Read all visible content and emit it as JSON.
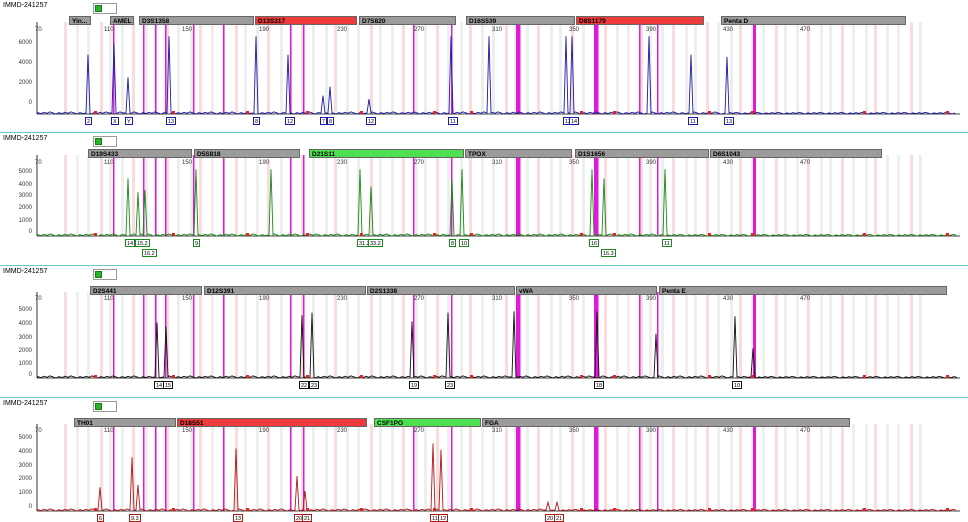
{
  "panels": [
    {
      "id": "blue",
      "title": "IMMD-241257",
      "color": "#1a1aa8",
      "ticks": [
        "70",
        "110",
        "150",
        "190",
        "230",
        "270",
        "310",
        "350",
        "390",
        "430",
        "470"
      ],
      "ylabels": [
        "6000",
        "4000",
        "2000",
        "0"
      ],
      "ymax": 7000,
      "loci": [
        {
          "name": "Yin...",
          "status": "gray"
        },
        {
          "name": "AMEL",
          "status": "gray"
        },
        {
          "name": "D3S1358",
          "status": "gray"
        },
        {
          "name": "D13S317",
          "status": "red"
        },
        {
          "name": "D7S820",
          "status": "gray"
        },
        {
          "name": "D16S539",
          "status": "gray"
        },
        {
          "name": "D8S1179",
          "status": "red"
        },
        {
          "name": "Penta D",
          "status": "gray"
        }
      ],
      "peaks": [
        [
          88,
          5200
        ],
        [
          114,
          6200
        ],
        [
          128,
          3200
        ],
        [
          169,
          6800
        ],
        [
          256,
          6800
        ],
        [
          288,
          5200
        ],
        [
          323,
          1600
        ],
        [
          330,
          2400
        ],
        [
          369,
          1300
        ],
        [
          451,
          6800
        ],
        [
          489,
          6800
        ],
        [
          566,
          6800
        ],
        [
          572,
          6800
        ],
        [
          649,
          6800
        ],
        [
          691,
          5200
        ],
        [
          727,
          5000
        ]
      ],
      "alleles": [
        [
          "2",
          88
        ],
        [
          "X",
          114
        ],
        [
          "Y",
          128
        ],
        [
          "13",
          169
        ],
        [
          "8",
          256
        ],
        [
          "12",
          288
        ],
        [
          "7",
          323
        ],
        [
          "8",
          330
        ],
        [
          "12",
          369
        ],
        [
          "11",
          451
        ],
        [
          "13",
          566
        ],
        [
          "14",
          572
        ],
        [
          "11",
          691
        ],
        [
          "13",
          727
        ]
      ]
    },
    {
      "id": "green",
      "title": "IMMD-241257",
      "color": "#1a8a1a",
      "ticks": [
        "70",
        "110",
        "150",
        "190",
        "230",
        "270",
        "310",
        "350",
        "390",
        "430",
        "470"
      ],
      "ylabels": [
        "5000",
        "4000",
        "3000",
        "2000",
        "1000",
        "0"
      ],
      "ymax": 6000,
      "loci": [
        {
          "name": "D19S433",
          "status": "gray"
        },
        {
          "name": "D5S818",
          "status": "gray"
        },
        {
          "name": "D21S11",
          "status": "green"
        },
        {
          "name": "TPOX",
          "status": "gray"
        },
        {
          "name": "D1S1656",
          "status": "gray"
        },
        {
          "name": "D6S1043",
          "status": "gray"
        }
      ],
      "peaks": [
        [
          128,
          5000
        ],
        [
          138,
          3800
        ],
        [
          145,
          4000
        ],
        [
          196,
          5800
        ],
        [
          271,
          5800
        ],
        [
          360,
          5800
        ],
        [
          371,
          4300
        ],
        [
          452,
          5000
        ],
        [
          462,
          5800
        ],
        [
          592,
          5800
        ],
        [
          604,
          5000
        ],
        [
          665,
          5800
        ]
      ],
      "alleles": [
        [
          "14",
          128
        ],
        [
          "15.2",
          138
        ],
        [
          "16.2",
          145
        ],
        [
          "9",
          196
        ],
        [
          "31.2",
          360
        ],
        [
          "33.2",
          371
        ],
        [
          "8",
          452
        ],
        [
          "10",
          462
        ],
        [
          "16",
          592
        ],
        [
          "16.3",
          604
        ],
        [
          "11",
          665
        ]
      ]
    },
    {
      "id": "black",
      "title": "IMMD-241257",
      "color": "#111111",
      "ticks": [
        "70",
        "110",
        "150",
        "190",
        "230",
        "270",
        "310",
        "350",
        "390",
        "430",
        "470"
      ],
      "ylabels": [
        "5000",
        "4000",
        "3000",
        "2000",
        "1000",
        "0"
      ],
      "ymax": 6000,
      "loci": [
        {
          "name": "D2S441",
          "status": "gray"
        },
        {
          "name": "D12S391",
          "status": "gray"
        },
        {
          "name": "D2S1338",
          "status": "gray"
        },
        {
          "name": "vWA",
          "status": "gray"
        },
        {
          "name": "Penta E",
          "status": "gray"
        }
      ],
      "peaks": [
        [
          157,
          4500
        ],
        [
          166,
          4200
        ],
        [
          302,
          5100
        ],
        [
          312,
          5300
        ],
        [
          412,
          4600
        ],
        [
          448,
          5300
        ],
        [
          514,
          5400
        ],
        [
          597,
          5400
        ],
        [
          656,
          3600
        ],
        [
          735,
          5000
        ],
        [
          753,
          2400
        ]
      ],
      "alleles": [
        [
          "14",
          157
        ],
        [
          "15",
          166
        ],
        [
          "22",
          302
        ],
        [
          "23",
          312
        ],
        [
          "19",
          412
        ],
        [
          "23",
          448
        ],
        [
          "18",
          597
        ],
        [
          "10",
          735
        ]
      ]
    },
    {
      "id": "red",
      "title": "IMMD-241257",
      "color": "#b01818",
      "ticks": [
        "70",
        "110",
        "150",
        "190",
        "230",
        "270",
        "310",
        "350",
        "390",
        "430",
        "470"
      ],
      "ylabels": [
        "5000",
        "4000",
        "3000",
        "2000",
        "1000",
        "0"
      ],
      "ymax": 6000,
      "loci": [
        {
          "name": "TH01",
          "status": "gray"
        },
        {
          "name": "D18S51",
          "status": "red"
        },
        {
          "name": "CSF1PO",
          "status": "green"
        },
        {
          "name": "FGA",
          "status": "gray"
        }
      ],
      "peaks": [
        [
          100,
          1900
        ],
        [
          132,
          4300
        ],
        [
          138,
          2100
        ],
        [
          236,
          5000
        ],
        [
          297,
          2800
        ],
        [
          305,
          1600
        ],
        [
          433,
          5400
        ],
        [
          441,
          4900
        ],
        [
          548,
          700
        ],
        [
          557,
          700
        ]
      ],
      "alleles": [
        [
          "6",
          100
        ],
        [
          "9.3",
          132
        ],
        [
          "13",
          236
        ],
        [
          "20",
          297
        ],
        [
          "21",
          305
        ],
        [
          "11",
          433
        ],
        [
          "12",
          441
        ],
        [
          "20",
          548
        ],
        [
          "21",
          557
        ]
      ]
    }
  ]
}
